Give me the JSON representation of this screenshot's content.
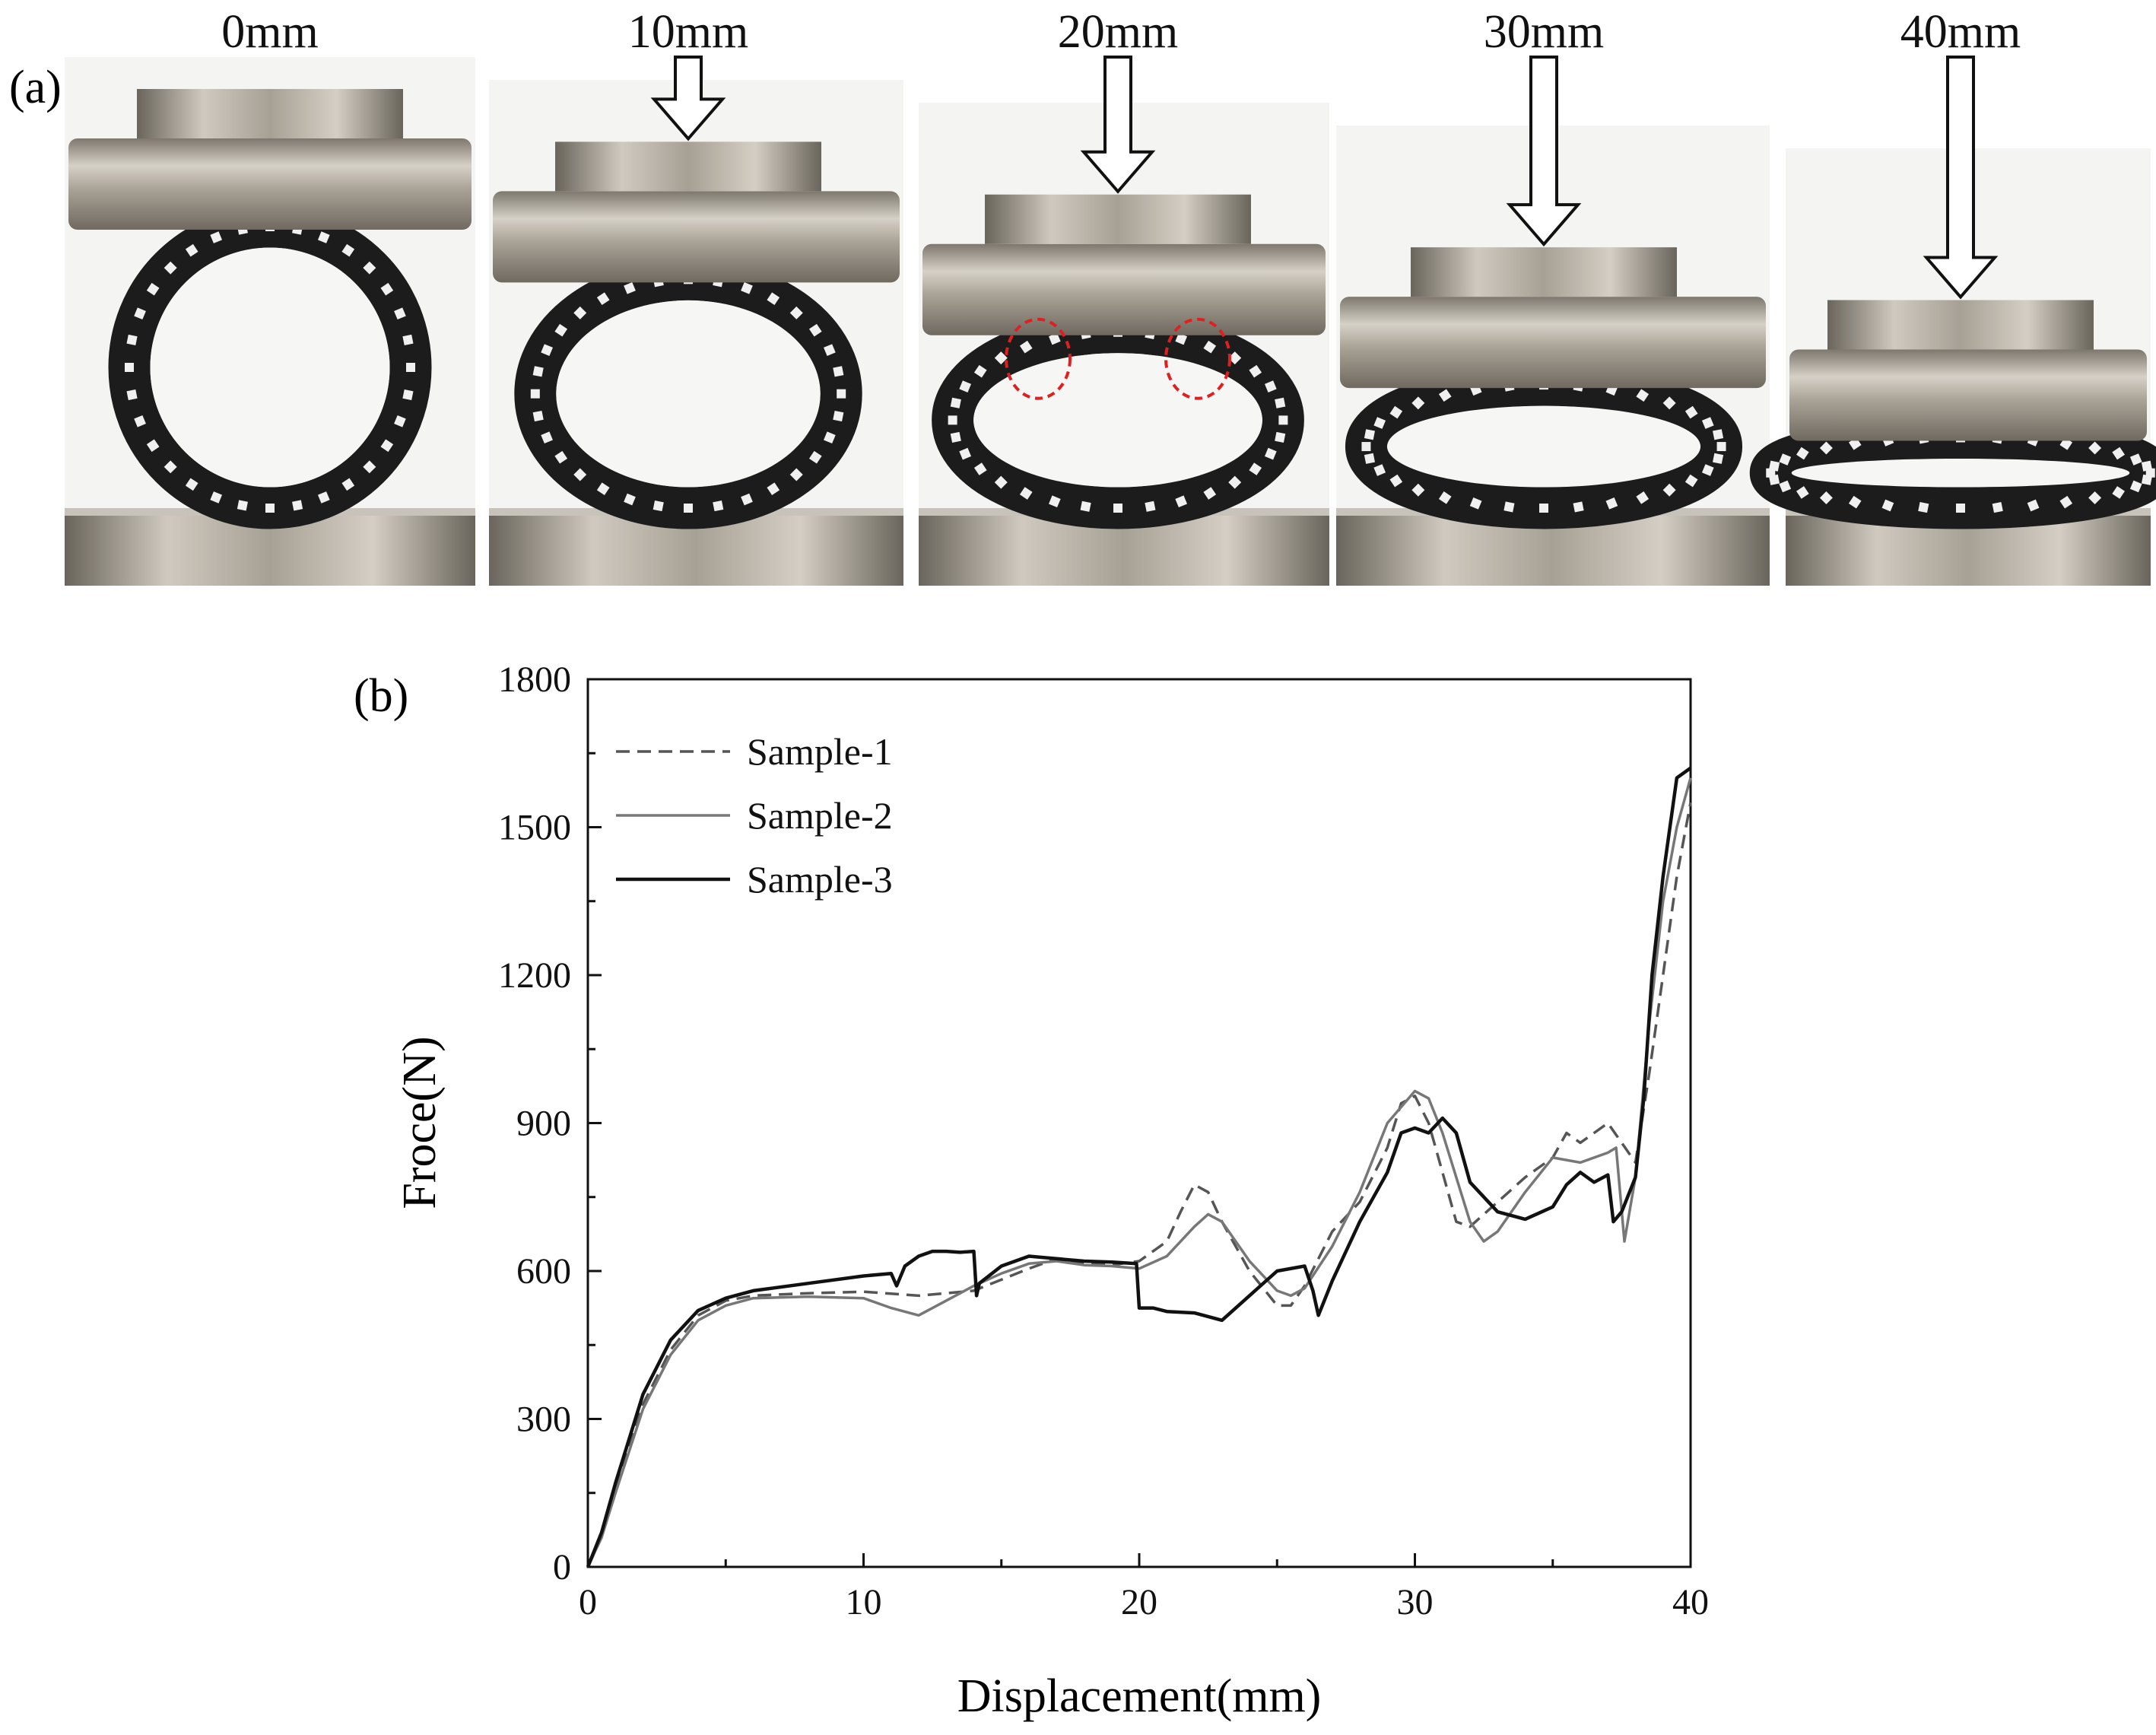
{
  "panel_a": {
    "label": "(a)",
    "stages": [
      {
        "label": "0mm",
        "displacement": 0
      },
      {
        "label": "10mm",
        "displacement": 10
      },
      {
        "label": "20mm",
        "displacement": 20
      },
      {
        "label": "30mm",
        "displacement": 30
      },
      {
        "label": "40mm",
        "displacement": 40
      }
    ],
    "colors": {
      "steel": "#9a948a",
      "steel_light": "#d9d4cb",
      "lattice": "#1c1c1c",
      "highlight": "#e02020"
    }
  },
  "panel_b": {
    "label": "(b)"
  },
  "chart_data": {
    "type": "line",
    "title": "",
    "xlabel": "Displacement(mm)",
    "ylabel": "Froce(N)",
    "xlim": [
      0,
      40
    ],
    "ylim": [
      0,
      1800
    ],
    "xticks": [
      0,
      10,
      20,
      30,
      40
    ],
    "yticks": [
      0,
      300,
      600,
      900,
      1200,
      1500,
      1800
    ],
    "grid": false,
    "legend_position": "top-left",
    "series": [
      {
        "name": "Sample-1",
        "style": "dashed",
        "color": "#555555",
        "x": [
          0,
          0.5,
          1,
          2,
          3,
          4,
          5,
          6,
          8,
          10,
          12,
          14,
          16,
          17,
          18,
          19,
          20,
          21,
          21.5,
          22,
          22.5,
          23,
          24,
          25,
          25.5,
          26,
          27,
          28,
          29,
          29.5,
          30,
          30.5,
          31,
          31.5,
          32,
          33,
          34,
          35,
          35.5,
          36,
          37,
          37.5,
          38,
          38.5,
          39,
          39.5,
          40
        ],
        "y": [
          0,
          60,
          160,
          330,
          440,
          510,
          540,
          550,
          555,
          558,
          550,
          560,
          605,
          625,
          615,
          612,
          620,
          660,
          720,
          775,
          760,
          700,
          600,
          530,
          530,
          570,
          680,
          740,
          850,
          940,
          955,
          900,
          800,
          700,
          690,
          740,
          790,
          830,
          880,
          860,
          900,
          860,
          820,
          1000,
          1200,
          1400,
          1550
        ]
      },
      {
        "name": "Sample-2",
        "style": "solid",
        "color": "#777777",
        "x": [
          0,
          0.5,
          1,
          2,
          3,
          4,
          5,
          6,
          8,
          10,
          11,
          12,
          13,
          14,
          15,
          16,
          17,
          18,
          19,
          20,
          21,
          22,
          22.5,
          23,
          24,
          25,
          25.5,
          26,
          27,
          28,
          29,
          30,
          30.5,
          31,
          32,
          32.5,
          33,
          34,
          35,
          36,
          37,
          37.3,
          37.6,
          38,
          38.5,
          39,
          39.5,
          40
        ],
        "y": [
          0,
          60,
          150,
          320,
          430,
          500,
          530,
          545,
          548,
          545,
          525,
          510,
          540,
          570,
          595,
          615,
          620,
          612,
          610,
          605,
          630,
          690,
          715,
          700,
          620,
          560,
          550,
          565,
          650,
          760,
          900,
          965,
          950,
          880,
          700,
          660,
          680,
          760,
          830,
          820,
          840,
          850,
          660,
          790,
          1100,
          1350,
          1500,
          1600
        ]
      },
      {
        "name": "Sample-3",
        "style": "solid",
        "color": "#111111",
        "x": [
          0,
          0.5,
          1,
          2,
          3,
          4,
          5,
          6,
          8,
          10,
          11,
          11.2,
          11.5,
          12,
          12.5,
          13,
          13.5,
          14,
          14.1,
          14.2,
          15,
          16,
          17,
          18,
          19,
          19.9,
          20,
          20.5,
          21,
          22,
          23,
          24,
          25,
          26,
          26.3,
          26.5,
          27,
          28,
          29,
          29.5,
          30,
          30.5,
          31,
          31.5,
          32,
          33,
          34,
          35,
          35.5,
          36,
          36.5,
          37,
          37.2,
          37.5,
          38,
          38.3,
          38.6,
          39,
          39.5,
          40
        ],
        "y": [
          0,
          70,
          170,
          350,
          460,
          520,
          545,
          560,
          575,
          590,
          595,
          570,
          610,
          630,
          640,
          640,
          638,
          640,
          550,
          575,
          610,
          630,
          625,
          620,
          618,
          615,
          525,
          525,
          518,
          515,
          500,
          550,
          600,
          610,
          560,
          510,
          580,
          700,
          800,
          880,
          890,
          880,
          910,
          880,
          780,
          720,
          705,
          730,
          775,
          800,
          780,
          795,
          700,
          720,
          790,
          950,
          1200,
          1400,
          1600,
          1620
        ]
      }
    ]
  }
}
